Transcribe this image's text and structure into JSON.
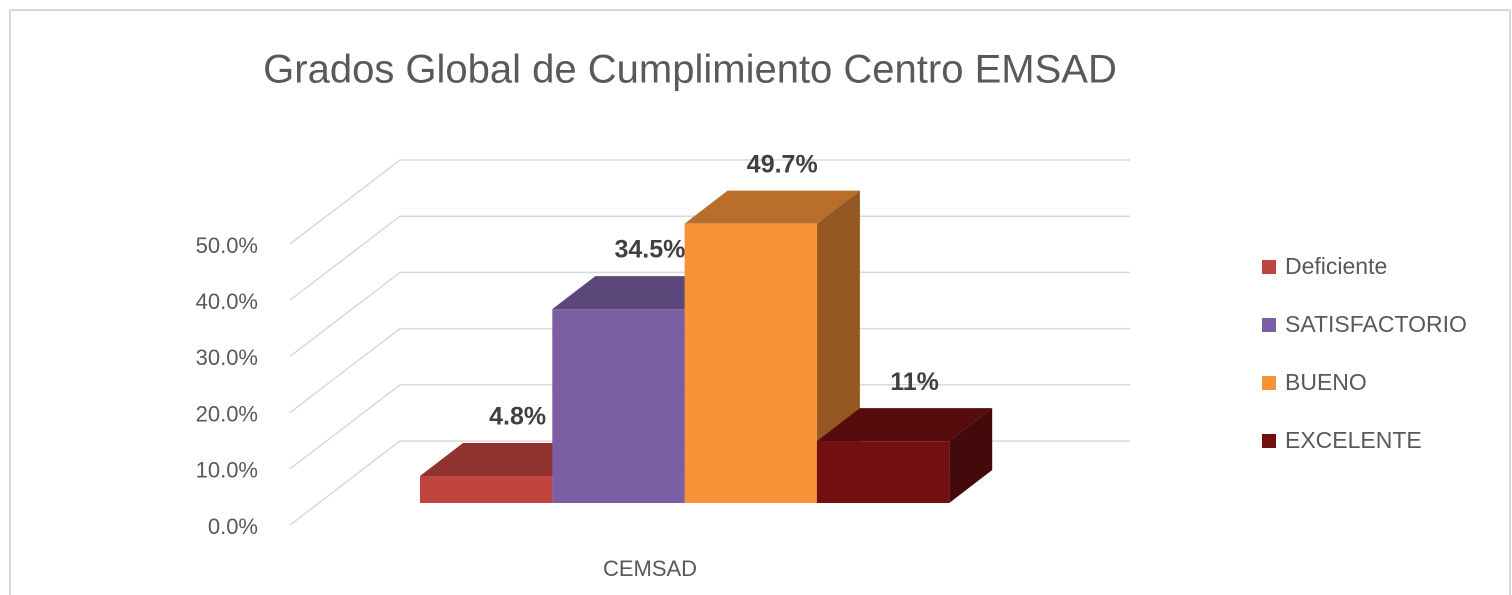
{
  "chart_data": {
    "type": "bar3d",
    "title": "Grados Global de Cumplimiento Centro EMSAD",
    "categories": [
      "CEMSAD"
    ],
    "series": [
      {
        "name": "Deficiente",
        "color": "#c0443f",
        "values": [
          4.8
        ],
        "value_labels": [
          "4.8%"
        ]
      },
      {
        "name": "SATISFACTORIO",
        "color": "#7b5ea3",
        "values": [
          34.5
        ],
        "value_labels": [
          "34.5%"
        ]
      },
      {
        "name": "BUENO",
        "color": "#f79239",
        "values": [
          49.7
        ],
        "value_labels": [
          "49.7%"
        ]
      },
      {
        "name": "EXCELENTE",
        "color": "#720f11",
        "values": [
          11
        ],
        "value_labels": [
          "11%"
        ]
      }
    ],
    "ylim": [
      0,
      50
    ],
    "yticks": [
      {
        "value": 0,
        "label": "0.0%"
      },
      {
        "value": 10,
        "label": "10.0%"
      },
      {
        "value": 20,
        "label": "20.0%"
      },
      {
        "value": 30,
        "label": "30.0%"
      },
      {
        "value": 40,
        "label": "40.0%"
      },
      {
        "value": 50,
        "label": "50.0%"
      }
    ],
    "grid": true,
    "legend": "right"
  }
}
